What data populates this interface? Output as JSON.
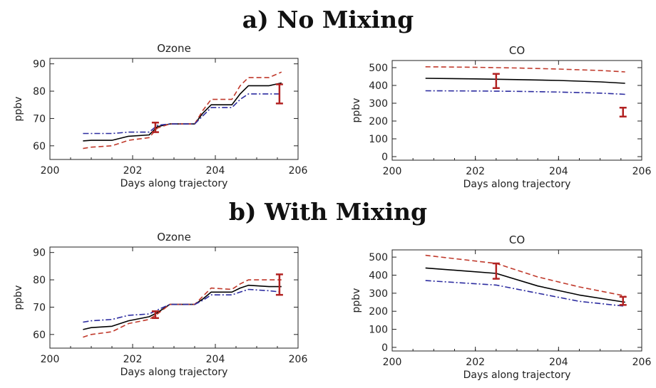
{
  "sections": [
    {
      "title": "a) No Mixing"
    },
    {
      "title": "b) With Mixing"
    }
  ],
  "colors": {
    "central": "#000000",
    "upper": "#c0392b",
    "lower": "#2c2ca0",
    "errorbar": "#b22222",
    "axis": "#222222"
  },
  "chart_data": [
    {
      "type": "line",
      "section": "a) No Mixing",
      "title": "Ozone",
      "xlabel": "Days along trajectory",
      "ylabel": "ppbv",
      "xlim": [
        200,
        206
      ],
      "ylim": [
        55,
        92
      ],
      "xticks": [
        200,
        202,
        204,
        206
      ],
      "yticks": [
        60,
        70,
        80,
        90
      ],
      "series": [
        {
          "style": "solid",
          "color": "#000000",
          "x": [
            200.8,
            201.0,
            201.5,
            201.9,
            202.4,
            202.6,
            202.9,
            203.5,
            203.7,
            203.9,
            204.4,
            204.6,
            204.8,
            205.3,
            205.6
          ],
          "y": [
            61.8,
            62.0,
            62.0,
            63.5,
            64.0,
            67.0,
            68.0,
            68.0,
            72.0,
            75.0,
            75.0,
            79.0,
            82.0,
            82.0,
            83.0
          ]
        },
        {
          "style": "dashed",
          "color": "#c0392b",
          "x": [
            200.8,
            201.0,
            201.5,
            201.9,
            202.4,
            202.6,
            202.9,
            203.5,
            203.7,
            203.9,
            204.4,
            204.6,
            204.8,
            205.3,
            205.6
          ],
          "y": [
            59.0,
            59.5,
            60.0,
            62.0,
            63.0,
            66.5,
            68.0,
            68.0,
            73.0,
            77.0,
            77.0,
            82.0,
            85.0,
            85.0,
            87.0
          ]
        },
        {
          "style": "dashdot",
          "color": "#2c2ca0",
          "x": [
            200.8,
            201.0,
            201.5,
            201.9,
            202.4,
            202.6,
            202.9,
            203.5,
            203.7,
            203.9,
            204.4,
            204.6,
            204.8,
            205.3,
            205.6
          ],
          "y": [
            64.5,
            64.5,
            64.5,
            65.0,
            65.0,
            67.5,
            68.0,
            68.0,
            71.0,
            74.0,
            74.0,
            77.0,
            79.0,
            79.0,
            79.0
          ]
        }
      ],
      "errorbars": [
        {
          "x": 202.55,
          "low": 65.0,
          "high": 68.5
        },
        {
          "x": 205.55,
          "low": 75.5,
          "high": 82.5
        }
      ]
    },
    {
      "type": "line",
      "section": "a) No Mixing",
      "title": "CO",
      "xlabel": "Days along trajectory",
      "ylabel": "ppbv",
      "xlim": [
        200,
        206
      ],
      "ylim": [
        -20,
        540
      ],
      "xticks": [
        200,
        202,
        204,
        206
      ],
      "yticks": [
        0,
        100,
        200,
        300,
        400,
        500
      ],
      "series": [
        {
          "style": "solid",
          "color": "#000000",
          "x": [
            200.8,
            202.0,
            203.0,
            204.0,
            205.0,
            205.6
          ],
          "y": [
            440,
            437,
            433,
            428,
            420,
            412
          ]
        },
        {
          "style": "dashed",
          "color": "#c0392b",
          "x": [
            200.8,
            202.0,
            203.0,
            204.0,
            205.0,
            205.6
          ],
          "y": [
            505,
            502,
            498,
            492,
            484,
            476
          ]
        },
        {
          "style": "dashdot",
          "color": "#2c2ca0",
          "x": [
            200.8,
            202.0,
            203.0,
            204.0,
            205.0,
            205.6
          ],
          "y": [
            370,
            369,
            367,
            363,
            357,
            350
          ]
        }
      ],
      "errorbars": [
        {
          "x": 202.5,
          "low": 385,
          "high": 465
        },
        {
          "x": 205.55,
          "low": 225,
          "high": 275
        }
      ]
    },
    {
      "type": "line",
      "section": "b) With Mixing",
      "title": "Ozone",
      "xlabel": "Days along trajectory",
      "ylabel": "ppbv",
      "xlim": [
        200,
        206
      ],
      "ylim": [
        55,
        92
      ],
      "xticks": [
        200,
        202,
        204,
        206
      ],
      "yticks": [
        60,
        70,
        80,
        90
      ],
      "series": [
        {
          "style": "solid",
          "color": "#000000",
          "x": [
            200.8,
            201.0,
            201.5,
            201.9,
            202.4,
            202.6,
            202.9,
            203.5,
            203.7,
            203.9,
            204.4,
            204.6,
            204.8,
            205.3,
            205.6
          ],
          "y": [
            61.8,
            62.5,
            63.0,
            65.0,
            66.5,
            68.0,
            71.0,
            71.0,
            73.0,
            75.5,
            75.5,
            77.0,
            78.0,
            77.5,
            77.5
          ]
        },
        {
          "style": "dashed",
          "color": "#c0392b",
          "x": [
            200.8,
            201.0,
            201.5,
            201.9,
            202.4,
            202.6,
            202.9,
            203.5,
            203.7,
            203.9,
            204.4,
            204.6,
            204.8,
            205.3,
            205.6
          ],
          "y": [
            59.0,
            60.0,
            61.0,
            64.0,
            65.5,
            67.5,
            71.0,
            71.0,
            74.0,
            77.0,
            76.5,
            78.5,
            80.0,
            80.0,
            80.0
          ]
        },
        {
          "style": "dashdot",
          "color": "#2c2ca0",
          "x": [
            200.8,
            201.0,
            201.5,
            201.9,
            202.4,
            202.6,
            202.9,
            203.5,
            203.7,
            203.9,
            204.4,
            204.6,
            204.8,
            205.3,
            205.6
          ],
          "y": [
            64.5,
            65.0,
            65.5,
            67.0,
            67.5,
            69.0,
            71.0,
            71.0,
            72.5,
            74.5,
            74.5,
            75.5,
            76.5,
            76.0,
            75.5
          ]
        }
      ],
      "errorbars": [
        {
          "x": 202.55,
          "low": 66.0,
          "high": 68.5
        },
        {
          "x": 205.55,
          "low": 74.5,
          "high": 82.0
        }
      ]
    },
    {
      "type": "line",
      "section": "b) With Mixing",
      "title": "CO",
      "xlabel": "Days along trajectory",
      "ylabel": "ppbv",
      "xlim": [
        200,
        206
      ],
      "ylim": [
        -20,
        540
      ],
      "xticks": [
        200,
        202,
        204,
        206
      ],
      "yticks": [
        0,
        100,
        200,
        300,
        400,
        500
      ],
      "series": [
        {
          "style": "solid",
          "color": "#000000",
          "x": [
            200.8,
            202.5,
            203.5,
            204.5,
            205.6
          ],
          "y": [
            440,
            410,
            340,
            290,
            250
          ]
        },
        {
          "style": "dashed",
          "color": "#c0392b",
          "x": [
            200.8,
            202.5,
            203.5,
            204.5,
            205.6
          ],
          "y": [
            510,
            465,
            390,
            335,
            285
          ]
        },
        {
          "style": "dashdot",
          "color": "#2c2ca0",
          "x": [
            200.8,
            202.5,
            203.5,
            204.5,
            205.6
          ],
          "y": [
            370,
            345,
            300,
            255,
            228
          ]
        }
      ],
      "errorbars": [
        {
          "x": 202.5,
          "low": 380,
          "high": 465
        },
        {
          "x": 205.55,
          "low": 235,
          "high": 280
        }
      ]
    }
  ]
}
